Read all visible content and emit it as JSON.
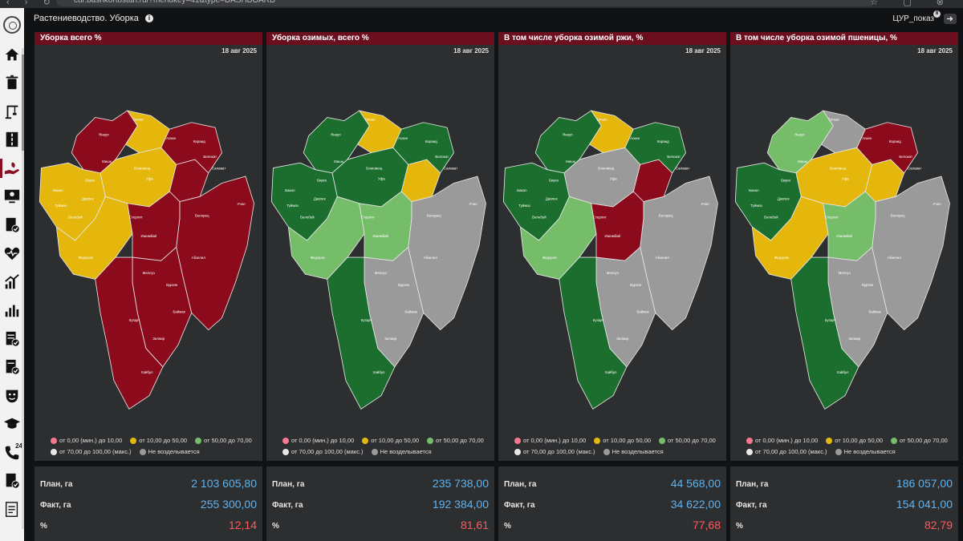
{
  "browser": {
    "url": "cur.bashkortostan.ru/?menukey=41&type=DASHBOARD"
  },
  "header": {
    "title": "Растениеводство. Уборка",
    "user": "ЦУР_показ",
    "user_badge": "8"
  },
  "colors": {
    "red": "#8b0b1d",
    "yellow": "#e5b70c",
    "dark_green": "#1b6e2e",
    "light_green": "#76bd6a",
    "gray": "#9a9a9a",
    "pink": "#f5798f",
    "white": "#e8e8e8"
  },
  "legend": [
    {
      "label": "от 0,00 (мин.) до 10,00",
      "color": "#f5798f"
    },
    {
      "label": "от 10,00 до 50,00",
      "color": "#e5b70c"
    },
    {
      "label": "от 50,00 до 70,00",
      "color": "#76bd6a"
    },
    {
      "label": "от 70,00 до 100,00 (макс.)",
      "color": "#e8e8e8"
    },
    {
      "label": "Не возделывается",
      "color": "#9a9a9a"
    }
  ],
  "panels": [
    {
      "title": "Уборка всего %",
      "date": "18 авг 2025",
      "plan_label": "План, га",
      "plan": "2 103 605,80",
      "fact_label": "Факт, га",
      "fact": "255 300,00",
      "pct_label": "%",
      "pct": "12,14",
      "fills": {
        "nw": "red",
        "n": "yellow",
        "ne": "red",
        "w": "yellow",
        "c": "yellow",
        "ce": "red",
        "e": "red",
        "sw": "yellow",
        "sc": "red",
        "se": "red",
        "s": "red"
      },
      "region_labels": [
        "Янаул",
        "Татыш",
        "Аскин",
        "Караид",
        "Белокат",
        "Салават",
        "Бакал",
        "Мишк",
        "Бирск",
        "Благовещ",
        "Уфа",
        "Белебей",
        "Туймаз",
        "Давлек",
        "Стерлит",
        "Ишимбай",
        "Абзелил",
        "Белорец",
        "Учал",
        "Мелеуз",
        "Бурзян",
        "Баймак",
        "Кугарч",
        "Зилаир",
        "Хайбул",
        "Федоров"
      ]
    },
    {
      "title": "Уборка озимых, всего %",
      "date": "18 авг 2025",
      "plan_label": "План, га",
      "plan": "235 738,00",
      "fact_label": "Факт, га",
      "fact": "192 384,00",
      "pct_label": "%",
      "pct": "81,61",
      "fills": {
        "nw": "dark_green",
        "n": "yellow",
        "ne": "dark_green",
        "w": "dark_green",
        "c": "dark_green",
        "ce": "yellow",
        "e": "gray",
        "sw": "light_green",
        "sc": "light_green",
        "se": "gray",
        "s": "dark_green"
      },
      "region_labels": [
        "Янаул",
        "Татыш",
        "Аскин",
        "Караид",
        "Белокат",
        "Салават",
        "Бакал",
        "Мишк",
        "Бирск",
        "Благовещ",
        "Уфа",
        "Белебей",
        "Туймаз",
        "Давлек",
        "Стерлит",
        "Ишимбай",
        "Абзелил",
        "Белорец",
        "Учал",
        "Мелеуз",
        "Бурзян",
        "Баймак",
        "Кугарч",
        "Зилаир",
        "Хайбул",
        "Федоров"
      ]
    },
    {
      "title": "В том числе уборка озимой ржи, %",
      "date": "18 авг 2025",
      "plan_label": "План, га",
      "plan": "44 568,00",
      "fact_label": "Факт, га",
      "fact": "34 622,00",
      "pct_label": "%",
      "pct": "77,68",
      "fills": {
        "nw": "dark_green",
        "n": "yellow",
        "ne": "dark_green",
        "w": "dark_green",
        "c": "gray",
        "ce": "red",
        "e": "gray",
        "sw": "light_green",
        "sc": "red",
        "se": "gray",
        "s": "dark_green"
      },
      "region_labels": [
        "Янаул",
        "Татыш",
        "Аскин",
        "Караид",
        "Белокат",
        "Салават",
        "Бакал",
        "Мишк",
        "Бирск",
        "Благовещ",
        "Уфа",
        "Белебей",
        "Туймаз",
        "Давлек",
        "Стерлит",
        "Ишимбай",
        "Абзелил",
        "Белорец",
        "Учал",
        "Мелеуз",
        "Бурзян",
        "Баймак",
        "Кугарч",
        "Зилаир",
        "Хайбул",
        "Федоров"
      ]
    },
    {
      "title": "В том числе уборка озимой пшеницы, %",
      "date": "18 авг 2025",
      "plan_label": "План, га",
      "plan": "186 057,00",
      "fact_label": "Факт, га",
      "fact": "154 041,00",
      "pct_label": "%",
      "pct": "82,79",
      "fills": {
        "nw": "light_green",
        "n": "gray",
        "ne": "red",
        "w": "dark_green",
        "c": "yellow",
        "ce": "yellow",
        "e": "gray",
        "sw": "yellow",
        "sc": "light_green",
        "se": "gray",
        "s": "dark_green"
      },
      "region_labels": [
        "Янаул",
        "Татыш",
        "Аскин",
        "Караид",
        "Белокат",
        "Салават",
        "Бакал",
        "Мишк",
        "Бирск",
        "Благовещ",
        "Уфа",
        "Белебей",
        "Туймаз",
        "Давлек",
        "Стерлит",
        "Ишимбай",
        "Абзелил",
        "Белорец",
        "Учал",
        "Мелеуз",
        "Бурзян",
        "Баймак",
        "Кугарч",
        "Зилаир",
        "Хайбул",
        "Федоров"
      ]
    }
  ]
}
